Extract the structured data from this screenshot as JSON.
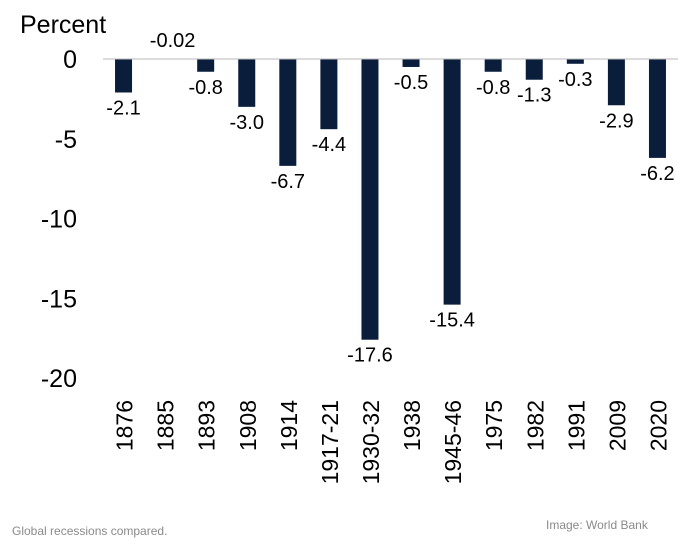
{
  "chart_data": {
    "type": "bar",
    "y_unit_label": "Percent",
    "categories": [
      "1876",
      "1885",
      "1893",
      "1908",
      "1914",
      "1917-21",
      "1930-32",
      "1938",
      "1945-46",
      "1975",
      "1982",
      "1991",
      "2009",
      "2020"
    ],
    "values": [
      -2.1,
      -0.02,
      -0.8,
      -3.0,
      -6.7,
      -4.4,
      -17.6,
      -0.5,
      -15.4,
      -0.8,
      -1.3,
      -0.3,
      -2.9,
      -6.2
    ],
    "value_labels": [
      "-2.1",
      "-0.02",
      "-0.8",
      "-3.0",
      "-6.7",
      "-4.4",
      "-17.6",
      "-0.5",
      "-15.4",
      "-0.8",
      "-1.3",
      "-0.3",
      "-2.9",
      "-6.2"
    ],
    "y_ticks": [
      0,
      -5,
      -10,
      -15,
      -20
    ],
    "y_tick_labels": [
      "0",
      "-5",
      "-10",
      "-15",
      "-20"
    ],
    "ylim": [
      -20,
      0
    ],
    "grid": false,
    "bar_color": "#0a1e3c"
  },
  "captions": {
    "left": "Global recessions compared.",
    "right": "Image: World Bank"
  }
}
